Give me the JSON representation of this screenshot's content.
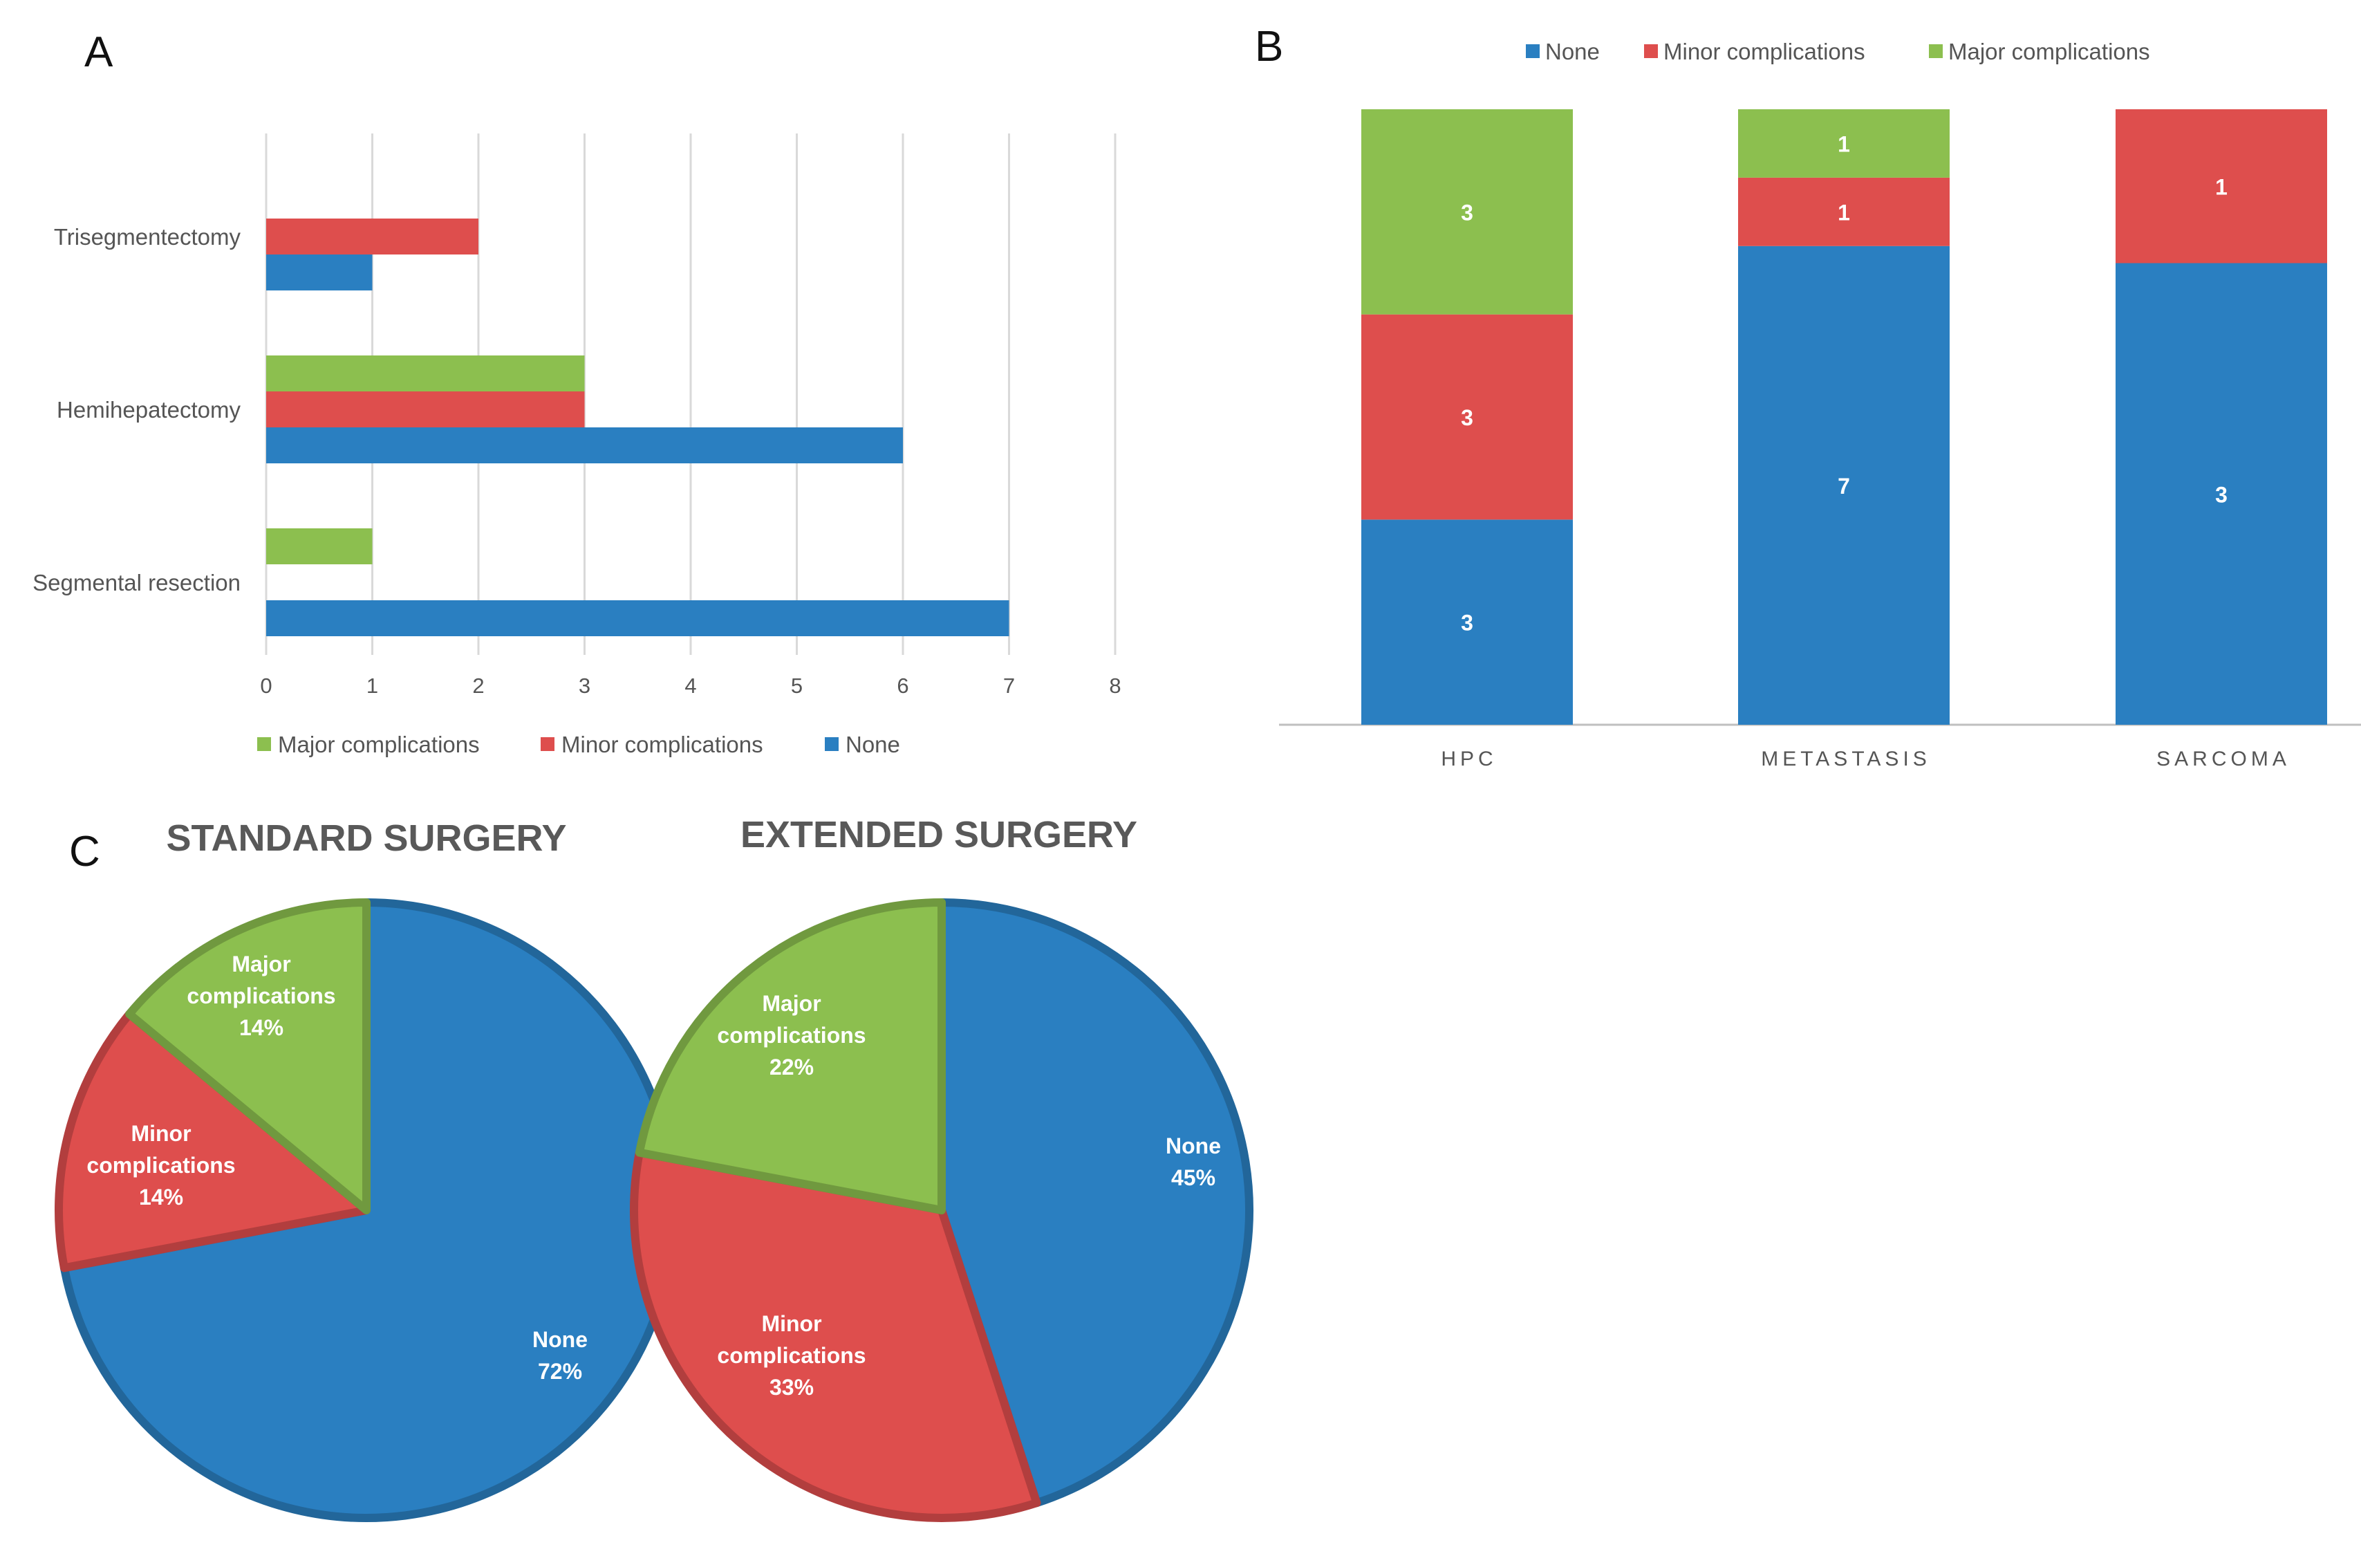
{
  "colors": {
    "none": "#2a7fc1",
    "minor": "#de4e4d",
    "major": "#8cbf4f",
    "grid": "#d9d9d9",
    "axis": "#bfbfbf"
  },
  "chart_data": [
    {
      "panel": "A",
      "type": "bar",
      "orientation": "horizontal",
      "categories": [
        "Trisegmentectomy",
        "Hemihepatectomy",
        "Segmental resection"
      ],
      "series": [
        {
          "name": "Major complications",
          "values": [
            0,
            3,
            1
          ]
        },
        {
          "name": "Minor complications",
          "values": [
            2,
            3,
            0
          ]
        },
        {
          "name": "None",
          "values": [
            1,
            6,
            7
          ]
        }
      ],
      "xlim": [
        0,
        8
      ],
      "xticks": [
        "0",
        "1",
        "2",
        "3",
        "4",
        "5",
        "6",
        "7",
        "8"
      ],
      "grid": true,
      "legend_position": "bottom"
    },
    {
      "panel": "B",
      "type": "bar",
      "stacked": true,
      "categories": [
        "HPC",
        "METASTASIS",
        "SARCOMA"
      ],
      "series": [
        {
          "name": "None",
          "values": [
            3,
            7,
            3
          ]
        },
        {
          "name": "Minor complications",
          "values": [
            3,
            1,
            1
          ]
        },
        {
          "name": "Major complications",
          "values": [
            3,
            1,
            0
          ]
        }
      ],
      "normalized": true,
      "legend_position": "top"
    },
    {
      "panel": "C",
      "type": "pie",
      "charts": [
        {
          "title": "STANDARD SURGERY",
          "slices": [
            {
              "name": "None",
              "line1": "None",
              "line2": "",
              "pct": "72%",
              "value": 72
            },
            {
              "name": "Minor complications",
              "line1": "Minor",
              "line2": "complications",
              "pct": "14%",
              "value": 14
            },
            {
              "name": "Major complications",
              "line1": "Major",
              "line2": "complications",
              "pct": "14%",
              "value": 14
            }
          ]
        },
        {
          "title": "EXTENDED SURGERY",
          "slices": [
            {
              "name": "None",
              "line1": "None",
              "line2": "",
              "pct": "45%",
              "value": 45
            },
            {
              "name": "Minor complications",
              "line1": "Minor",
              "line2": "complications",
              "pct": "33%",
              "value": 33
            },
            {
              "name": "Major complications",
              "line1": "Major",
              "line2": "complications",
              "pct": "22%",
              "value": 22
            }
          ]
        }
      ]
    }
  ]
}
